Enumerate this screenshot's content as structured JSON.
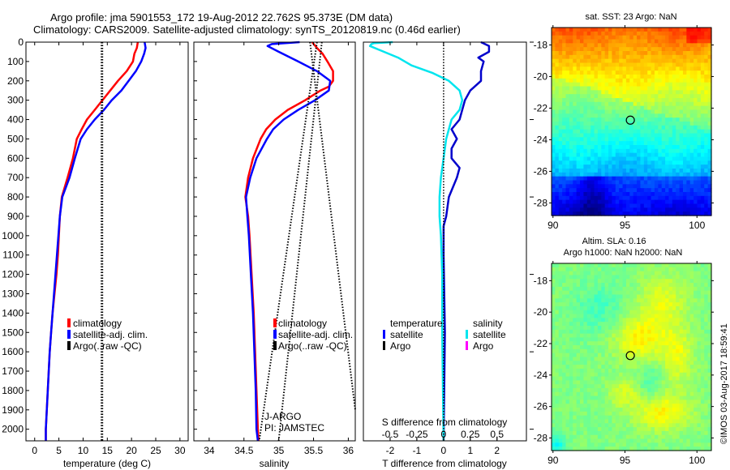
{
  "header": {
    "line1": "Argo profile: jma 5901553_172 19-Aug-2012 22.762S 95.373E (DM data)",
    "line2": "Climatology: CARS2009. Satellite-adjusted climatology: synTS_20120819.nc (0.46d earlier)"
  },
  "colors": {
    "climatology": "#ff0000",
    "satellite": "#0000ff",
    "argo": "#000000",
    "salinity_satellite": "#00e5ee",
    "salinity_argo": "#ff00ff",
    "temp_diff_satellite": "#0000cc"
  },
  "watermark": "©IMOS 03-Aug-2017 18:59:41",
  "chart_data": [
    {
      "id": "temperature",
      "type": "line",
      "xlabel": "temperature (deg C)",
      "ylabel": "",
      "xlim": [
        -1.8,
        31.7
      ],
      "ylim": [
        2060,
        0
      ],
      "xticks": [
        0,
        5,
        10,
        15,
        20,
        25,
        30
      ],
      "yticks": [
        0,
        100,
        200,
        300,
        400,
        500,
        600,
        700,
        800,
        900,
        1000,
        1100,
        1200,
        1300,
        1400,
        1500,
        1600,
        1700,
        1800,
        1900,
        2000
      ],
      "legend": [
        "climatology",
        "satellite-adj. clim.",
        "Argo(..raw -QC)"
      ],
      "legend_labels_display": [
        "climatology",
        "satellite-adj. clim.",
        "Argo(..raw -QC)"
      ],
      "series": [
        {
          "name": "climatology",
          "color_key": "climatology",
          "depth": [
            0,
            30,
            60,
            100,
            150,
            200,
            250,
            300,
            350,
            400,
            450,
            500,
            600,
            700,
            800,
            900,
            1000,
            1100,
            1200,
            1300,
            1400,
            1500,
            1600,
            1700,
            1800,
            1900,
            2000,
            2060
          ],
          "values": [
            21.3,
            21.1,
            20.6,
            20.3,
            19.0,
            17.2,
            15.6,
            14.0,
            12.4,
            10.8,
            9.7,
            8.7,
            7.9,
            6.8,
            5.6,
            5.2,
            5.0,
            4.8,
            4.5,
            4.1,
            3.7,
            3.4,
            3.1,
            2.9,
            2.7,
            2.5,
            2.3,
            2.3
          ]
        },
        {
          "name": "satellite-adj. clim.",
          "color_key": "satellite",
          "depth": [
            0,
            30,
            60,
            100,
            150,
            200,
            250,
            300,
            350,
            400,
            450,
            500,
            600,
            700,
            800,
            900,
            1000,
            1100,
            1200,
            1300,
            1400,
            1500,
            1600,
            1700,
            1800,
            1900,
            2000,
            2060
          ],
          "values": [
            22.7,
            22.9,
            22.6,
            22.0,
            20.9,
            19.4,
            17.9,
            15.9,
            14.3,
            12.4,
            10.8,
            9.5,
            8.3,
            7.2,
            5.7,
            5.2,
            4.9,
            4.6,
            4.3,
            4.0,
            3.7,
            3.4,
            3.1,
            2.9,
            2.7,
            2.5,
            2.3,
            2.3
          ]
        },
        {
          "name": "Argo(..raw -QC)",
          "color_key": "argo",
          "style": "dotted",
          "depth": [
            0,
            2060
          ],
          "values": [
            13.9,
            13.9
          ]
        }
      ]
    },
    {
      "id": "salinity",
      "type": "line",
      "xlabel": "salinity",
      "xlim": [
        33.78,
        36.1
      ],
      "ylim": [
        2060,
        0
      ],
      "xticks": [
        34,
        34.5,
        35,
        35.5,
        36
      ],
      "xticklabels": [
        "34",
        "34.5",
        "35",
        "35.5",
        "36"
      ],
      "legend": [
        "climatology",
        "satellite-adj. clim.",
        "Argo(..raw -QC)"
      ],
      "annotations": [
        "J-ARGO",
        "PI: JAMSTEC"
      ],
      "series": [
        {
          "name": "climatology",
          "color_key": "climatology",
          "depth": [
            0,
            30,
            60,
            100,
            150,
            200,
            230,
            250,
            300,
            350,
            400,
            450,
            500,
            600,
            700,
            800,
            900,
            1000,
            1200,
            1400,
            1600,
            1800,
            2000,
            2060
          ],
          "values": [
            35.48,
            35.55,
            35.63,
            35.7,
            35.78,
            35.78,
            35.72,
            35.6,
            35.38,
            35.13,
            34.95,
            34.82,
            34.74,
            34.63,
            34.56,
            34.52,
            34.56,
            34.58,
            34.61,
            34.64,
            34.66,
            34.68,
            34.7,
            34.71
          ]
        },
        {
          "name": "satellite-adj. clim.",
          "color_key": "satellite",
          "depth": [
            0,
            10,
            20,
            50,
            100,
            150,
            200,
            250,
            300,
            350,
            400,
            450,
            500,
            600,
            700,
            800,
            900,
            1000,
            1200,
            1400,
            1600,
            1800,
            2000,
            2060
          ],
          "values": [
            35.3,
            34.9,
            34.84,
            35.0,
            35.28,
            35.55,
            35.74,
            35.72,
            35.52,
            35.28,
            35.07,
            34.92,
            34.83,
            34.68,
            34.59,
            34.53,
            34.55,
            34.57,
            34.6,
            34.63,
            34.65,
            34.67,
            34.68,
            34.7
          ]
        },
        {
          "name": "Argo(..raw -QC) line 1",
          "color_key": "argo",
          "style": "dotted",
          "depth": [
            0,
            2060
          ],
          "values": [
            35.55,
            34.72
          ]
        },
        {
          "name": "Argo(..raw -QC) line 2",
          "color_key": "argo",
          "style": "dotted",
          "depth": [
            0,
            1900
          ],
          "values": [
            35.45,
            36.1
          ]
        },
        {
          "name": "Argo(..raw -QC) line 3",
          "color_key": "argo",
          "style": "dotted",
          "depth": [
            0,
            2060
          ],
          "values": [
            35.62,
            35.0
          ]
        }
      ]
    },
    {
      "id": "difference",
      "type": "line",
      "xlabel": "T difference from climatology",
      "xlabel_top": "S difference from climatology",
      "xlim": [
        -3.0,
        3.1
      ],
      "ylim": [
        2060,
        0
      ],
      "xticks": [
        -2,
        -1,
        0,
        1,
        2
      ],
      "xticks_top": [
        -0.5,
        -0.25,
        0,
        0.25,
        0.5
      ],
      "xticklabels_top": [
        "-0.5",
        "-0.25",
        "0",
        "0.25",
        "0.5"
      ],
      "legend_temperature": {
        "title": "temperature",
        "items": [
          "satellite",
          "Argo"
        ]
      },
      "legend_salinity": {
        "title": "salinity",
        "items": [
          "satellite",
          "Argo"
        ]
      },
      "series": [
        {
          "name": "temperature satellite",
          "color_key": "temp_diff_satellite",
          "depth": [
            0,
            20,
            50,
            80,
            100,
            150,
            200,
            250,
            300,
            350,
            400,
            450,
            500,
            550,
            600,
            650,
            700,
            800,
            900,
            950,
            1000,
            1100,
            1500,
            2060
          ],
          "values": [
            1.4,
            1.7,
            1.7,
            1.3,
            1.5,
            1.4,
            1.4,
            1.0,
            0.8,
            0.7,
            0.6,
            0.3,
            0.5,
            0.3,
            0.3,
            0.6,
            0.5,
            0.2,
            0.1,
            0.0,
            0.0,
            0.0,
            0.05,
            0.0
          ]
        },
        {
          "name": "salinity satellite (T-axis scaled)",
          "color_key": "salinity_satellite",
          "depth": [
            0,
            5,
            10,
            20,
            40,
            80,
            120,
            160,
            200,
            250,
            300,
            350,
            400,
            450,
            500,
            600,
            700,
            800,
            900,
            1000,
            1200,
            1500,
            2060
          ],
          "values": [
            -1.9,
            -2.6,
            -2.7,
            -2.75,
            -2.4,
            -1.7,
            -1.2,
            -0.4,
            0.2,
            0.6,
            0.7,
            0.6,
            0.3,
            0.2,
            0.1,
            0.0,
            -0.1,
            -0.15,
            -0.15,
            -0.1,
            -0.05,
            -0.05,
            0.0
          ]
        },
        {
          "name": "zero reference",
          "color_key": "argo",
          "style": "dotted",
          "depth": [
            0,
            2060
          ],
          "values": [
            0,
            0
          ]
        }
      ]
    },
    {
      "id": "sst-map",
      "type": "heatmap",
      "title": "sat. SST: 23 Argo: NaN",
      "xlim": [
        89.9,
        101
      ],
      "ylim": [
        -28.8,
        -16.9
      ],
      "xticks": [
        90,
        95,
        100
      ],
      "yticks": [
        -18,
        -20,
        -22,
        -24,
        -26,
        -28
      ],
      "marker": {
        "lon": 95.373,
        "lat": -22.762
      },
      "colorscale": "jet (warm north, cool south)"
    },
    {
      "id": "sla-map",
      "type": "heatmap",
      "title": "Altim. SLA: 0.16",
      "subtitle": "Argo h1000: NaN h2000: NaN",
      "xlim": [
        89.9,
        101
      ],
      "ylim": [
        -28.8,
        -16.9
      ],
      "xticks": [
        90,
        95,
        100
      ],
      "yticks": [
        -18,
        -20,
        -22,
        -24,
        -26,
        -28
      ],
      "marker": {
        "lon": 95.373,
        "lat": -22.762
      },
      "colorscale": "jet (mostly green/yellow)"
    }
  ]
}
